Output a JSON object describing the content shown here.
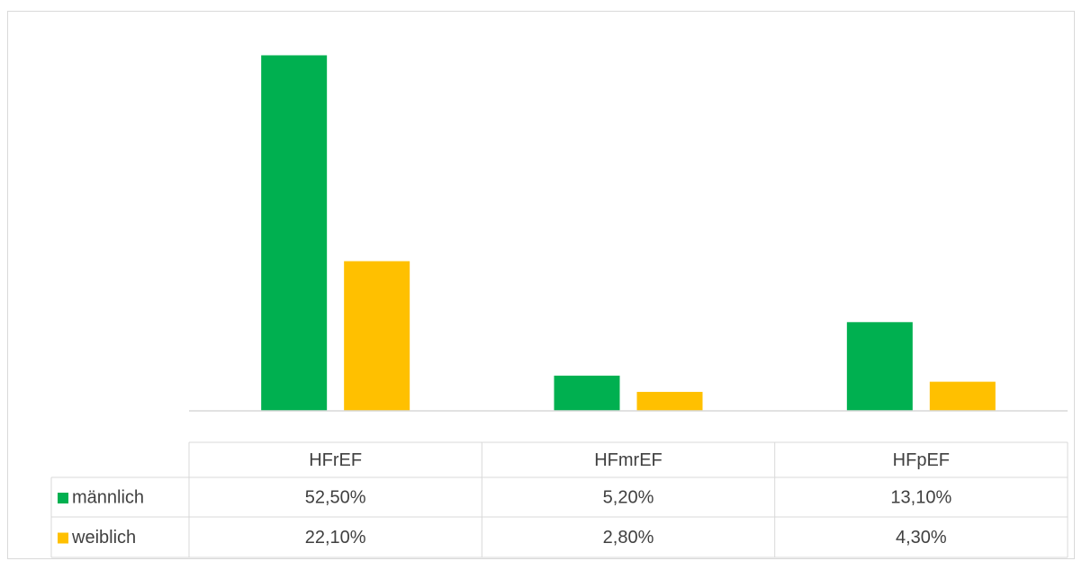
{
  "chart_data": {
    "type": "bar",
    "categories": [
      "HFrEF",
      "HFmrEF",
      "HFpEF"
    ],
    "series": [
      {
        "name": "männlich",
        "color": "#00b050",
        "values": [
          52.5,
          5.2,
          13.1
        ],
        "value_labels": [
          "52,50%",
          "5,20%",
          "13,10%"
        ]
      },
      {
        "name": "weiblich",
        "color": "#ffc000",
        "values": [
          22.1,
          2.8,
          4.3
        ],
        "value_labels": [
          "22,10%",
          "2,80%",
          "4,30%"
        ]
      }
    ],
    "ylim": [
      0,
      60
    ]
  }
}
